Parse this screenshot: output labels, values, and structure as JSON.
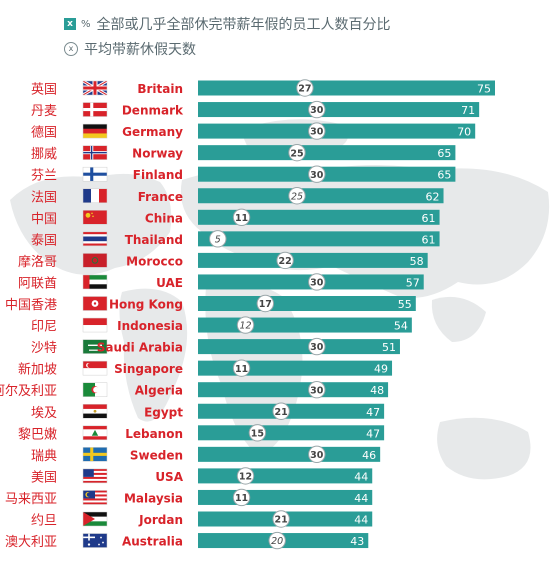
{
  "legend": {
    "bar_marker": "x",
    "bar_pct_symbol": "%",
    "bar_text": "全部或几乎全部休完带薪年假的员工人数百分比",
    "circle_marker": "x",
    "circle_text": "平均带薪休假天数"
  },
  "colors": {
    "bar": "#2a9d97",
    "label_red": "#d8232a",
    "map": "#e7e9ea",
    "circle_border": "#9aa6a9",
    "circle_text": "#444444"
  },
  "chart_data": {
    "type": "bar",
    "orientation": "horizontal",
    "xlim": [
      0,
      80
    ],
    "categories_cn": [
      "英国",
      "丹麦",
      "德国",
      "挪威",
      "芬兰",
      "法国",
      "中国",
      "泰国",
      "摩洛哥",
      "阿联酋",
      "中国香港",
      "印尼",
      "沙特",
      "新加坡",
      "阿尔及利亚",
      "埃及",
      "黎巴嫩",
      "瑞典",
      "美国",
      "马来西亚",
      "约旦",
      "澳大利亚"
    ],
    "categories_en": [
      "Britain",
      "Denmark",
      "Germany",
      "Norway",
      "Finland",
      "France",
      "China",
      "Thailand",
      "Morocco",
      "UAE",
      "Hong Kong",
      "Indonesia",
      "Saudi Arabia",
      "Singapore",
      "Algeria",
      "Egypt",
      "Lebanon",
      "Sweden",
      "USA",
      "Malaysia",
      "Jordan",
      "Australia"
    ],
    "flags": [
      "uk-flag",
      "denmark-flag",
      "germany-flag",
      "norway-flag",
      "finland-flag",
      "france-flag",
      "china-flag",
      "thailand-flag",
      "morocco-flag",
      "uae-flag",
      "hong-kong-flag",
      "indonesia-flag",
      "saudi-arabia-flag",
      "singapore-flag",
      "algeria-flag",
      "egypt-flag",
      "lebanon-flag",
      "sweden-flag",
      "usa-flag",
      "malaysia-flag",
      "jordan-flag",
      "australia-flag"
    ],
    "series": [
      {
        "name": "全部或几乎全部休完带薪年假的员工人数百分比",
        "values": [
          75,
          71,
          70,
          65,
          65,
          62,
          61,
          61,
          58,
          57,
          55,
          54,
          51,
          49,
          48,
          47,
          47,
          46,
          44,
          44,
          44,
          43
        ]
      },
      {
        "name": "平均带薪休假天数",
        "values": [
          27,
          30,
          30,
          25,
          30,
          25,
          11,
          5,
          22,
          30,
          17,
          12,
          30,
          11,
          30,
          21,
          15,
          30,
          12,
          11,
          21,
          20
        ]
      }
    ],
    "circle_italic": [
      false,
      false,
      false,
      false,
      false,
      true,
      false,
      true,
      false,
      false,
      false,
      true,
      false,
      false,
      false,
      false,
      false,
      false,
      false,
      false,
      false,
      true
    ]
  }
}
